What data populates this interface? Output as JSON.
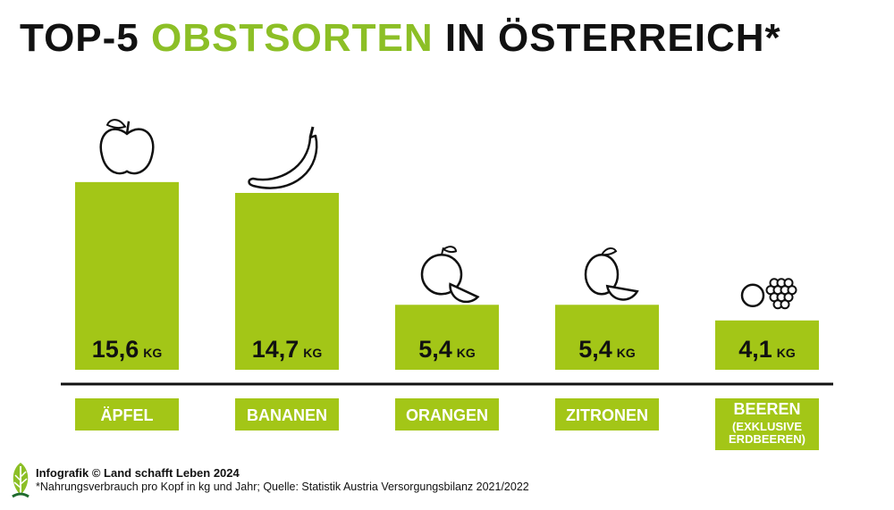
{
  "header": {
    "title_part1": "TOP-5",
    "title_accent": "OBSTSORTEN",
    "title_part2": "IN ÖSTERREICH*"
  },
  "colors": {
    "bar": "#a3c617",
    "accent_text": "#8cbf26",
    "text": "#111111",
    "axis": "#111111"
  },
  "chart_data": {
    "type": "bar",
    "categories": [
      "ÄPFEL",
      "BANANEN",
      "ORANGEN",
      "ZITRONEN",
      "BEEREN (EXKLUSIVE ERDBEEREN)"
    ],
    "category_lines": [
      [
        "ÄPFEL"
      ],
      [
        "BANANEN"
      ],
      [
        "ORANGEN"
      ],
      [
        "ZITRONEN"
      ],
      [
        "BEEREN",
        "(EXKLUSIVE",
        "ERDBEEREN)"
      ]
    ],
    "values": [
      15.6,
      14.7,
      5.4,
      5.4,
      4.1
    ],
    "value_labels": [
      "15,6",
      "14,7",
      "5,4",
      "5,4",
      "4,1"
    ],
    "unit": "KG",
    "icons": [
      "apple-icon",
      "banana-icon",
      "orange-icon",
      "lemon-icon",
      "berries-icon"
    ],
    "ylim": [
      0,
      17
    ],
    "grid": false,
    "legend": "none"
  },
  "footer": {
    "credit": "Infografik © Land schafft Leben 2024",
    "note": "*Nahrungsverbrauch pro Kopf in kg und Jahr; Quelle: Statistik Austria Versorgungsbilanz 2021/2022",
    "logo_icon": "leaf-logo-icon"
  }
}
